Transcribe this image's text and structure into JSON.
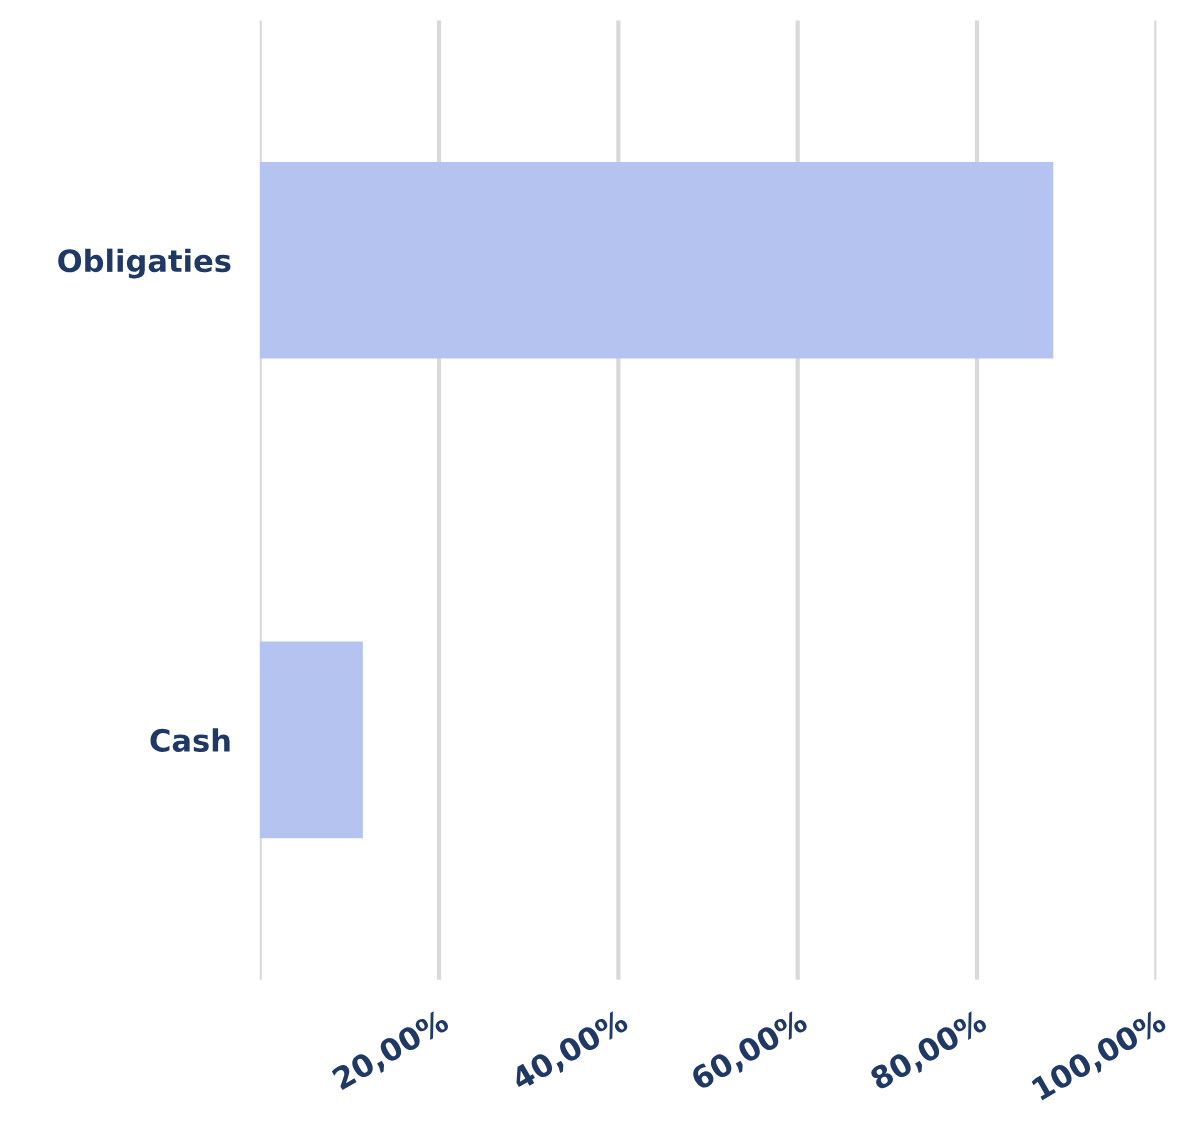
{
  "chart_data": {
    "type": "bar",
    "orientation": "horizontal",
    "categories": [
      "Obligaties",
      "Cash"
    ],
    "values": [
      88.5,
      11.5
    ],
    "color": "#b4c3f0",
    "xlim": [
      0,
      100
    ],
    "xticks": [
      {
        "value": 0,
        "label": null
      },
      {
        "value": 20,
        "label": "20,00%"
      },
      {
        "value": 40,
        "label": "40,00%"
      },
      {
        "value": 60,
        "label": "60,00%"
      },
      {
        "value": 80,
        "label": "80,00%"
      },
      {
        "value": 100,
        "label": "100,00%"
      }
    ],
    "grid": "x",
    "legend": false
  }
}
